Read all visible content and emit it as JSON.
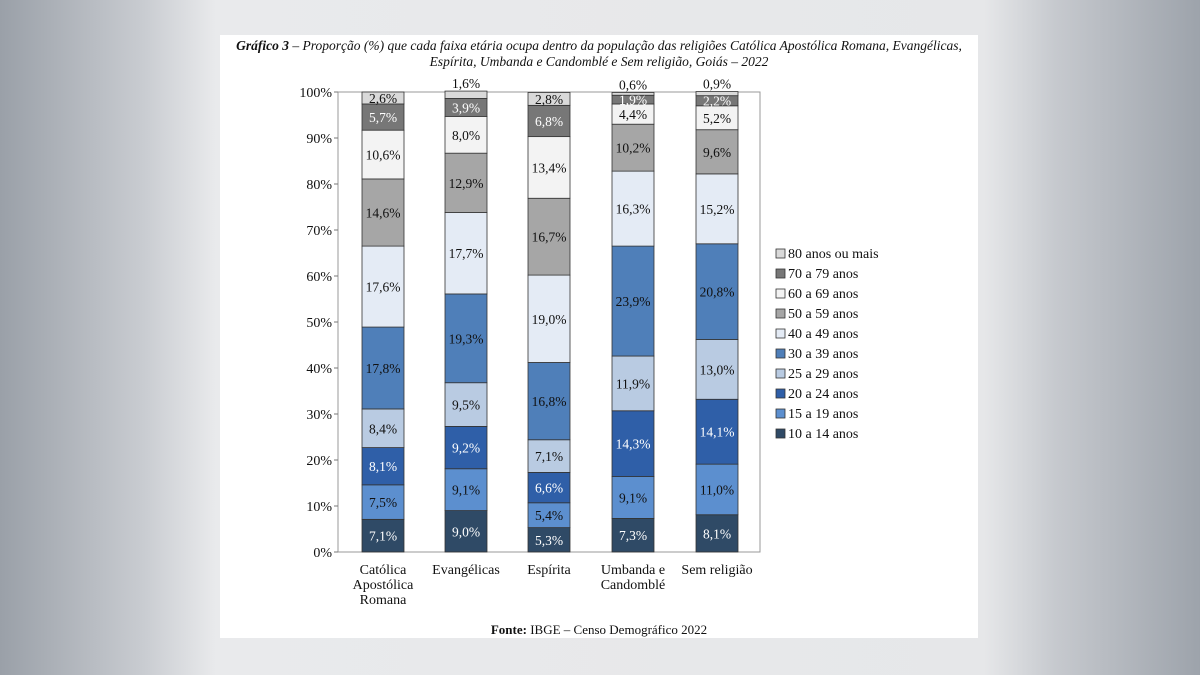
{
  "chart_data": {
    "type": "bar",
    "stacked": true,
    "title_bold": "Gráfico 3",
    "title_rest": " – Proporção (%) que cada faixa etária ocupa dentro da população das religiões Católica Apostólica Romana, Evangélicas, Espírita, Umbanda e Candomblé e Sem religião, Goiás – 2022",
    "source_bold": "Fonte:",
    "source_rest": " IBGE – Censo Demográfico 2022",
    "ylim": [
      0,
      100
    ],
    "yticks": [
      "0%",
      "10%",
      "20%",
      "30%",
      "40%",
      "50%",
      "60%",
      "70%",
      "80%",
      "90%",
      "100%"
    ],
    "categories": [
      [
        "Católica",
        "Apostólica",
        "Romana"
      ],
      [
        "Evangélicas"
      ],
      [
        "Espírita"
      ],
      [
        "Umbanda e",
        "Candomblé"
      ],
      [
        "Sem religião"
      ]
    ],
    "legend_position": "right",
    "series": [
      {
        "name": "10 a 14 anos",
        "color": "#2f4a66",
        "label_color": "#ffffff",
        "values": [
          7.1,
          9.0,
          5.3,
          7.3,
          8.1
        ]
      },
      {
        "name": "15 a 19 anos",
        "color": "#5c8fcf",
        "label_color": "#111111",
        "values": [
          7.5,
          9.1,
          5.4,
          9.1,
          11.0
        ]
      },
      {
        "name": "20 a 24 anos",
        "color": "#2f5fa8",
        "label_color": "#ffffff",
        "values": [
          8.1,
          9.2,
          6.6,
          14.3,
          14.1
        ]
      },
      {
        "name": "25 a 29 anos",
        "color": "#b9cbe2",
        "label_color": "#111111",
        "values": [
          8.4,
          9.5,
          7.1,
          11.9,
          13.0
        ]
      },
      {
        "name": "30 a 39 anos",
        "color": "#4f7fb9",
        "label_color": "#111111",
        "values": [
          17.8,
          19.3,
          16.8,
          23.9,
          20.8
        ]
      },
      {
        "name": "40 a 49 anos",
        "color": "#e4ebf5",
        "label_color": "#111111",
        "values": [
          17.6,
          17.7,
          19.0,
          16.3,
          15.2
        ]
      },
      {
        "name": "50 a 59 anos",
        "color": "#a6a6a6",
        "label_color": "#111111",
        "values": [
          14.6,
          12.9,
          16.7,
          10.2,
          9.6
        ]
      },
      {
        "name": "60 a 69 anos",
        "color": "#f3f3f3",
        "label_color": "#111111",
        "values": [
          10.6,
          8.0,
          13.4,
          4.4,
          5.2
        ]
      },
      {
        "name": "70 a 79 anos",
        "color": "#777777",
        "label_color": "#ffffff",
        "values": [
          5.7,
          3.9,
          6.8,
          1.9,
          2.2
        ]
      },
      {
        "name": "80 anos ou mais",
        "color": "#d9d9d9",
        "label_color": "#111111",
        "values": [
          2.6,
          1.6,
          2.8,
          0.6,
          0.9
        ]
      }
    ]
  }
}
